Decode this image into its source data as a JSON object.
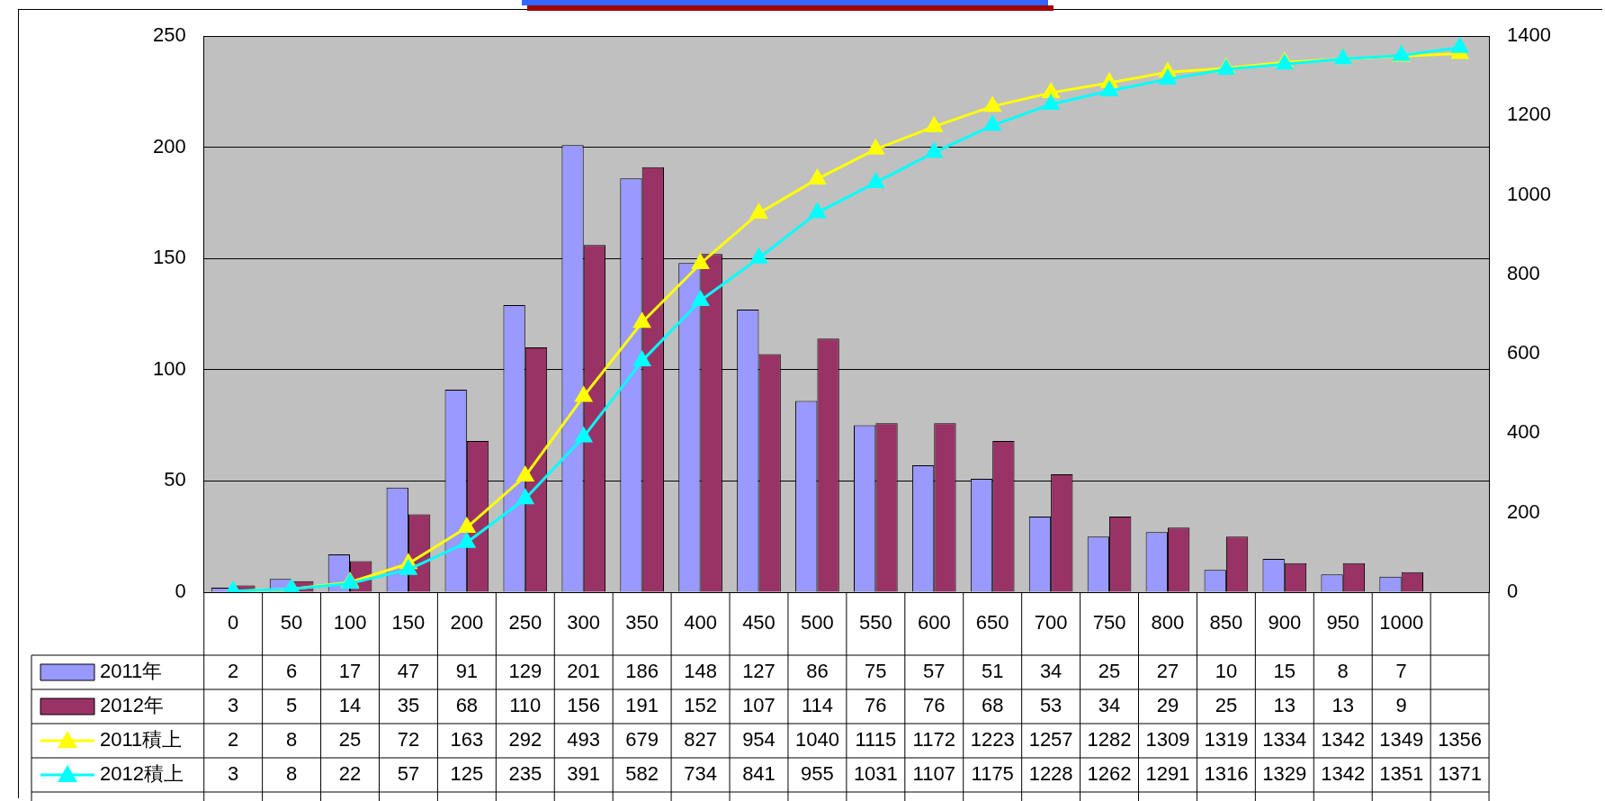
{
  "chart_data": {
    "type": "bar",
    "categories": [
      "0",
      "50",
      "100",
      "150",
      "200",
      "250",
      "300",
      "350",
      "400",
      "450",
      "500",
      "550",
      "600",
      "650",
      "700",
      "750",
      "800",
      "850",
      "900",
      "950",
      "1000",
      null
    ],
    "series": [
      {
        "name": "2011年",
        "color": "#9999ff",
        "values": [
          2,
          6,
          17,
          47,
          91,
          129,
          201,
          186,
          148,
          127,
          86,
          75,
          57,
          51,
          34,
          25,
          27,
          10,
          15,
          8,
          7,
          null
        ]
      },
      {
        "name": "2012年",
        "color": "#993366",
        "values": [
          3,
          5,
          14,
          35,
          68,
          110,
          156,
          191,
          152,
          107,
          114,
          76,
          76,
          68,
          53,
          34,
          29,
          25,
          13,
          13,
          9,
          null
        ]
      },
      {
        "name": "2011積上",
        "type": "line",
        "axis": "y2",
        "color": "#ffff00",
        "values": [
          2,
          8,
          25,
          72,
          163,
          292,
          493,
          679,
          827,
          954,
          1040,
          1115,
          1172,
          1223,
          1257,
          1282,
          1309,
          1319,
          1334,
          1342,
          1349,
          1356
        ]
      },
      {
        "name": "2012積上",
        "type": "line",
        "axis": "y2",
        "color": "#00ffff",
        "values": [
          3,
          8,
          22,
          57,
          125,
          235,
          391,
          582,
          734,
          841,
          955,
          1031,
          1107,
          1175,
          1228,
          1262,
          1291,
          1316,
          1329,
          1342,
          1351,
          1371
        ]
      }
    ],
    "ylim": [
      0,
      250
    ],
    "yticks": [
      0,
      50,
      100,
      150,
      200,
      250
    ],
    "y2lim": [
      0,
      1400
    ],
    "y2ticks": [
      0,
      200,
      400,
      600,
      800,
      1000,
      1200,
      1400
    ],
    "grid": "y",
    "legend": "bottom",
    "marker": "triangle",
    "line_style": "solid",
    "data_labels": true
  }
}
